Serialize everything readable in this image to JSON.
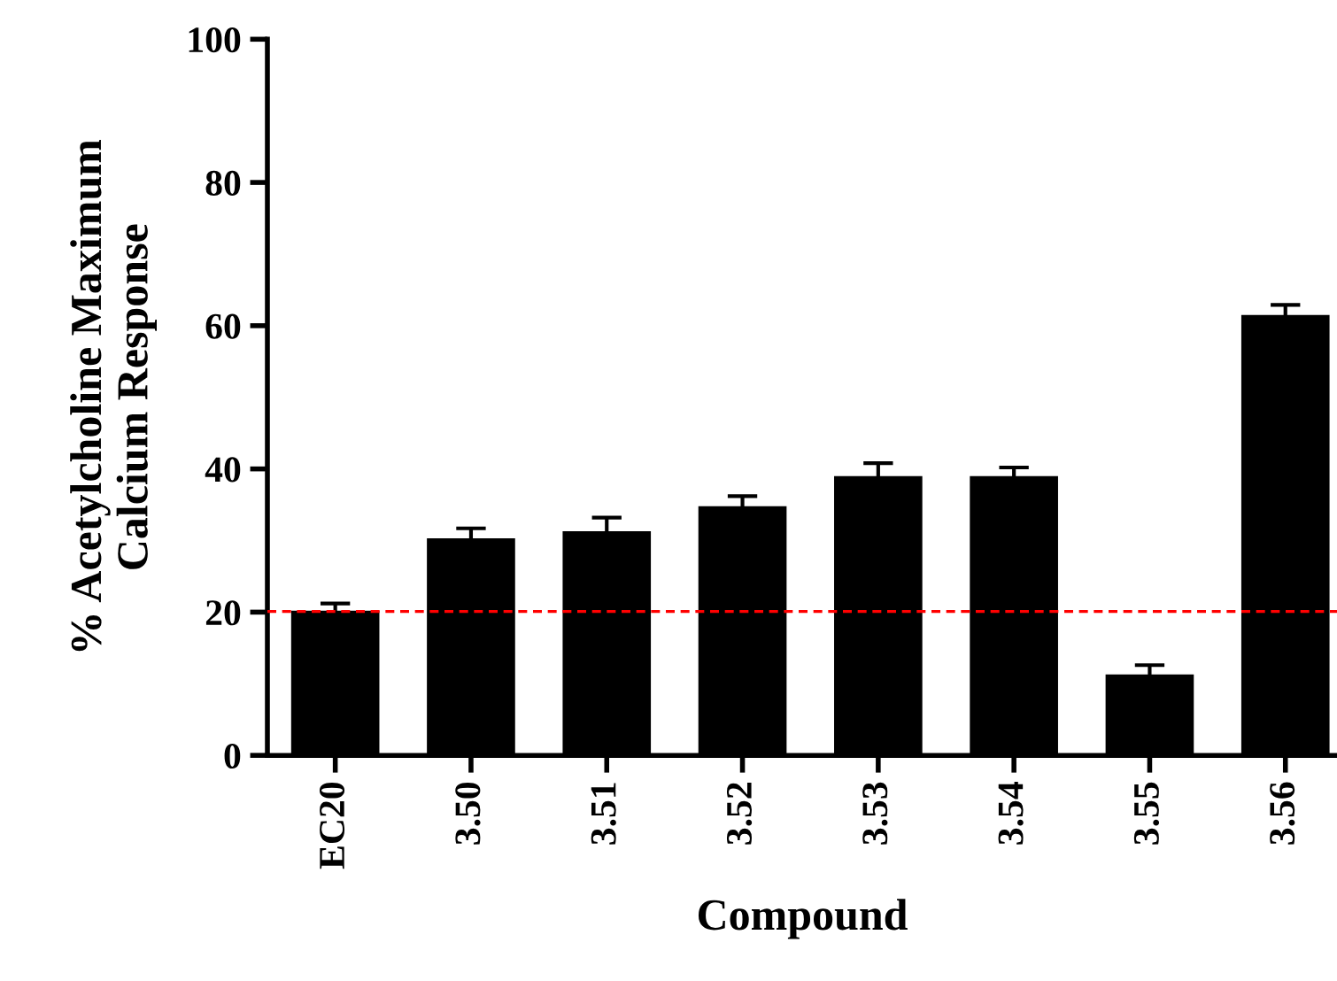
{
  "chart_data": {
    "type": "bar",
    "xlabel": "Compound",
    "ylabel": "% Acetylcholine Maximum\nCalcium Response",
    "categories": [
      "EC20",
      "3.50",
      "3.51",
      "3.52",
      "3.53",
      "3.54",
      "3.55",
      "3.56"
    ],
    "values": [
      20.2,
      30.3,
      31.3,
      34.8,
      39.0,
      39.0,
      11.3,
      61.5
    ],
    "errors": [
      1.0,
      1.4,
      1.9,
      1.4,
      1.8,
      1.2,
      1.3,
      1.4
    ],
    "color": "#000000",
    "ylim": [
      0,
      100
    ],
    "yticks": [
      0,
      20,
      40,
      60,
      80,
      100
    ],
    "ref_lines": [
      {
        "axis": "y",
        "value": 20.1,
        "color": "#ff0000",
        "line_style": "dashed"
      }
    ],
    "grid": false,
    "legend": false
  }
}
